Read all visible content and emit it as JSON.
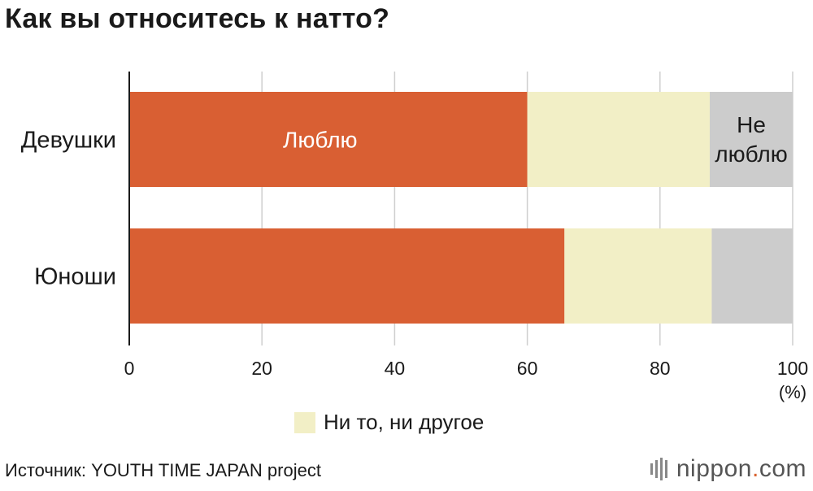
{
  "title": "Как вы относитесь к натто?",
  "chart_data": {
    "type": "bar",
    "orientation": "horizontal",
    "stacked": true,
    "categories": [
      "Девушки",
      "Юноши"
    ],
    "series": [
      {
        "name": "Люблю",
        "color": "#d95f33",
        "values": [
          60.0,
          65.6
        ]
      },
      {
        "name": "Ни то, ни другое",
        "color": "#f2efc6",
        "values": [
          27.5,
          22.2
        ]
      },
      {
        "name": "Не люблю",
        "color": "#cccccc",
        "values": [
          12.5,
          12.2
        ]
      }
    ],
    "xlim": [
      0,
      100
    ],
    "xticks": [
      0,
      20,
      40,
      60,
      80,
      100
    ],
    "xunit": "(%)",
    "grid": "vertical",
    "inline_labels": {
      "love": "Люблю",
      "dislike_line1": "Не",
      "dislike_line2": "люблю"
    },
    "legend": {
      "label": "Ни то, ни другое",
      "color": "#f2efc6",
      "placement": "bottom"
    }
  },
  "source": "Источник: YOUTH TIME JAPAN project",
  "brand": {
    "name": "nippon",
    "dot": ".",
    "tld": "com"
  }
}
